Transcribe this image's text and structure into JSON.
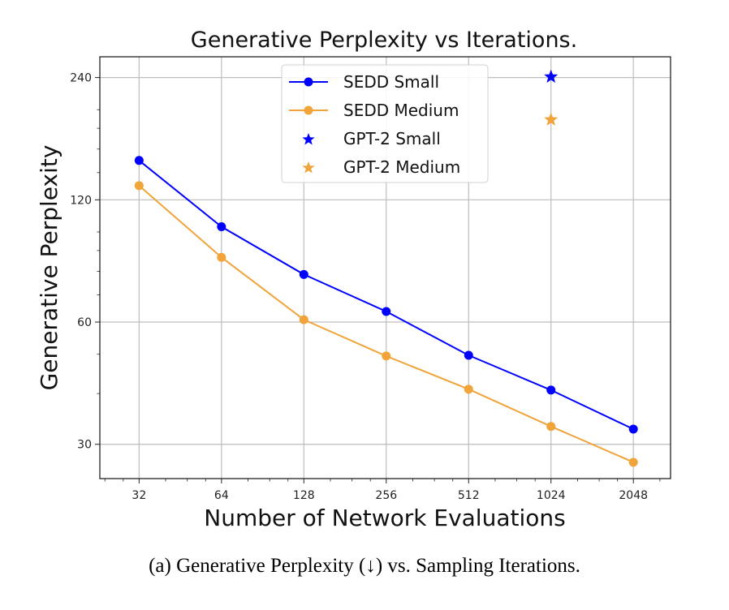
{
  "chart_data": {
    "type": "line",
    "title": "Generative Perplexity vs Iterations.",
    "xlabel": "Number of Network Evaluations",
    "ylabel": "Generative Perplexity",
    "xscale": "log2",
    "yscale": "log2",
    "x": [
      32,
      64,
      128,
      256,
      512,
      1024,
      2048
    ],
    "x_tick_labels": [
      "32",
      "64",
      "128",
      "256",
      "512",
      "1024",
      "2048"
    ],
    "y_ticks": [
      30,
      60,
      120,
      240
    ],
    "y_tick_labels": [
      "30",
      "60",
      "120",
      "240"
    ],
    "y_minor_ticks": [
      40,
      50,
      70,
      80,
      90,
      100,
      140,
      160,
      180,
      200
    ],
    "xlim": [
      23,
      2800
    ],
    "ylim": [
      24.7,
      270
    ],
    "grid": true,
    "legend_position": "top-center",
    "series": [
      {
        "name": "SEDD Small",
        "kind": "line",
        "color": "#0000ff",
        "values": [
          150,
          103,
          78.6,
          63.7,
          49.7,
          40.8,
          32.7
        ]
      },
      {
        "name": "SEDD Medium",
        "kind": "line",
        "color": "#f0a43a",
        "values": [
          130,
          86.6,
          60.8,
          49.5,
          41.0,
          33.2,
          27.1
        ]
      },
      {
        "name": "GPT-2 Small",
        "kind": "star",
        "color": "#0000ff",
        "x": 1024,
        "value": 241
      },
      {
        "name": "GPT-2 Medium",
        "kind": "star",
        "color": "#f0a43a",
        "x": 1024,
        "value": 189
      }
    ]
  },
  "caption": "(a) Generative Perplexity (↓) vs. Sampling Iterations."
}
